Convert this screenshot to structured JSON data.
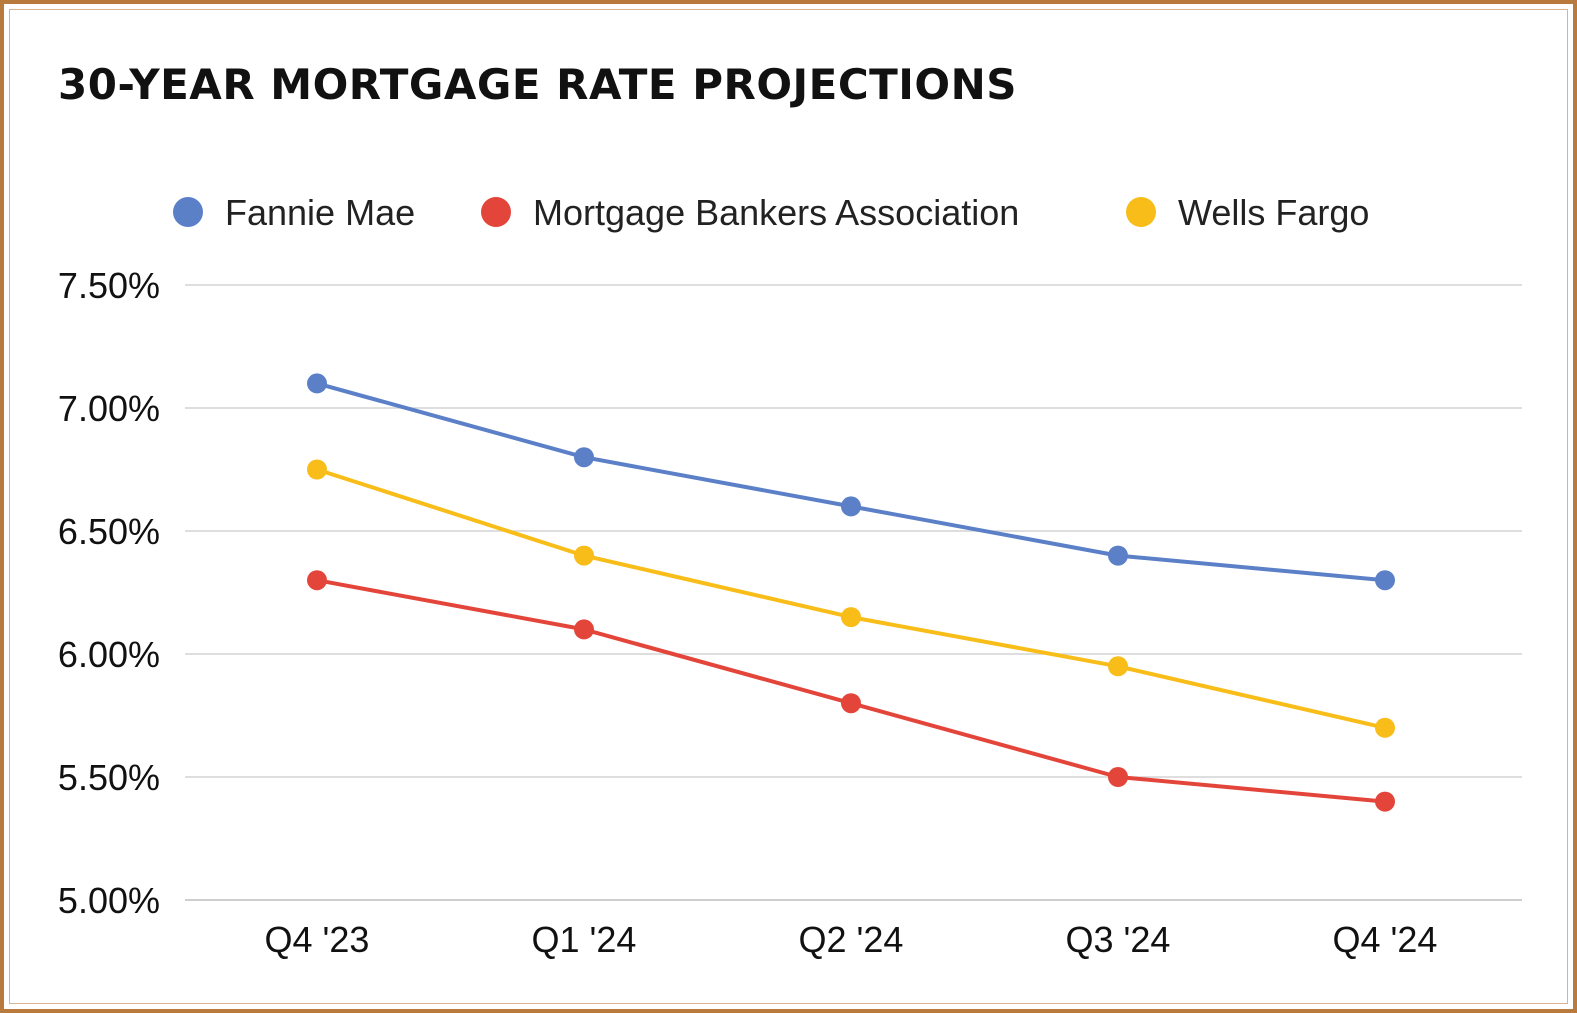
{
  "chart_data": {
    "type": "line",
    "title": "30-YEAR MORTGAGE RATE PROJECTIONS",
    "xlabel": "",
    "ylabel": "",
    "categories": [
      "Q4 '23",
      "Q1 '24",
      "Q2 '24",
      "Q3 '24",
      "Q4 '24"
    ],
    "ylim": [
      5.0,
      7.5
    ],
    "yticks": [
      5.0,
      5.5,
      6.0,
      6.5,
      7.0,
      7.5
    ],
    "ytick_labels": [
      "5.00%",
      "5.50%",
      "6.00%",
      "6.50%",
      "7.00%",
      "7.50%"
    ],
    "grid": true,
    "legend_position": "top",
    "series": [
      {
        "name": "Fannie Mae",
        "color": "#5b80c8",
        "values": [
          7.1,
          6.8,
          6.6,
          6.4,
          6.3
        ]
      },
      {
        "name": "Mortgage Bankers Association",
        "color": "#e4453a",
        "values": [
          6.3,
          6.1,
          5.8,
          5.5,
          5.4
        ]
      },
      {
        "name": "Wells Fargo",
        "color": "#f8bd19",
        "values": [
          6.75,
          6.4,
          6.15,
          5.95,
          5.7
        ]
      }
    ]
  }
}
